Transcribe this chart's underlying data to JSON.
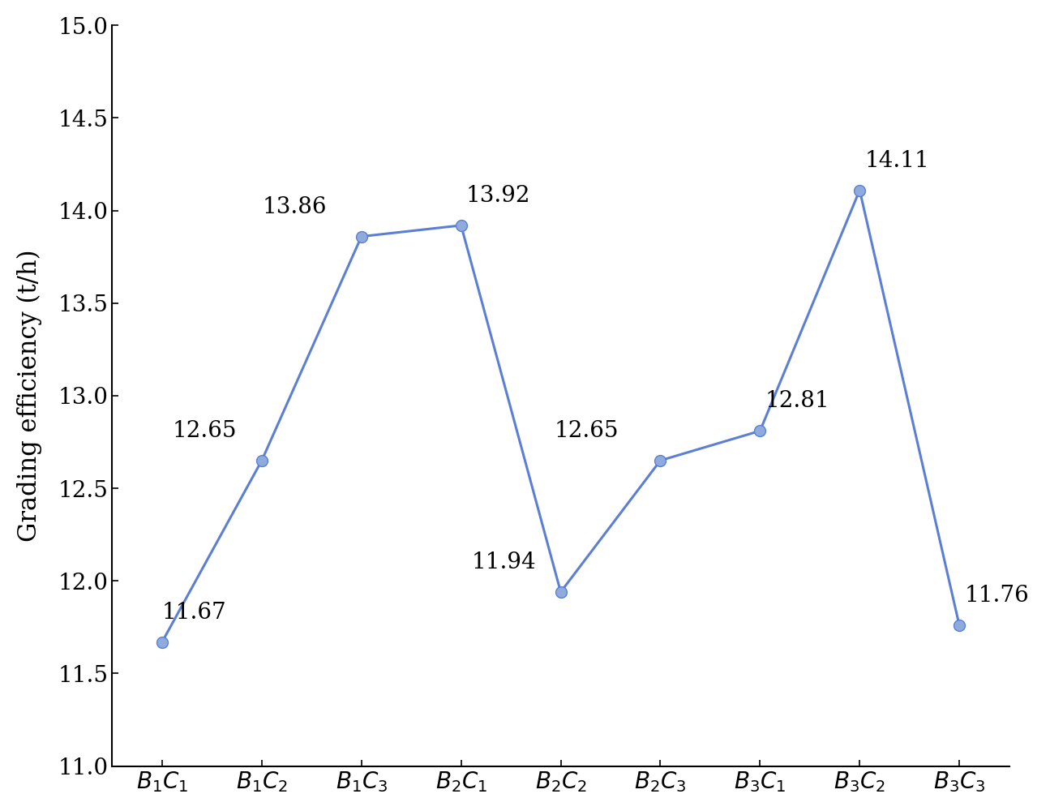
{
  "x_labels": [
    "$B_1C_1$",
    "$B_1C_2$",
    "$B_1C_3$",
    "$B_2C_1$",
    "$B_2C_2$",
    "$B_2C_3$",
    "$B_3C_1$",
    "$B_3C_2$",
    "$B_3C_3$"
  ],
  "y_values": [
    11.67,
    12.65,
    13.86,
    13.92,
    11.94,
    12.65,
    12.81,
    14.11,
    11.76
  ],
  "annotations": [
    "11.67",
    "12.65",
    "13.86",
    "13.92",
    "11.94",
    "12.65",
    "12.81",
    "14.11",
    "11.76"
  ],
  "annotation_offsets_x": [
    0.0,
    -0.25,
    -0.35,
    0.05,
    -0.25,
    -0.42,
    0.05,
    0.05,
    0.05
  ],
  "annotation_offsets_y": [
    0.1,
    0.1,
    0.1,
    0.1,
    0.1,
    0.1,
    0.1,
    0.1,
    0.1
  ],
  "annotation_ha": [
    "left",
    "right",
    "right",
    "left",
    "right",
    "right",
    "left",
    "left",
    "left"
  ],
  "line_color": "#5b7fd4",
  "marker_facecolor": "#8faadc",
  "marker_edgecolor": "#5b7fd4",
  "ylabel": "Grading efficiency (t/h)",
  "ylim": [
    11.0,
    15.0
  ],
  "yticks": [
    11.0,
    11.5,
    12.0,
    12.5,
    13.0,
    13.5,
    14.0,
    14.5,
    15.0
  ],
  "annotation_fontsize": 20,
  "label_fontsize": 22,
  "tick_fontsize": 20,
  "line_width": 2.2,
  "marker_size": 10,
  "background_color": "#ffffff"
}
